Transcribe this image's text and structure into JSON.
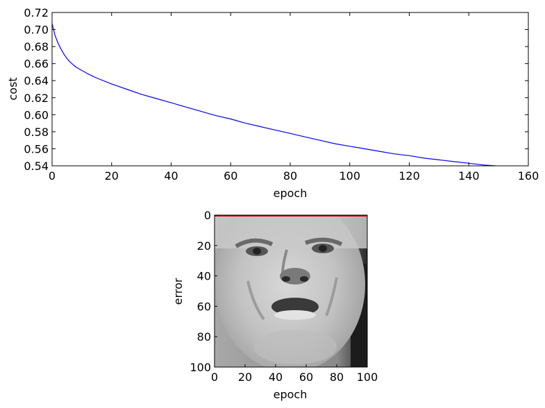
{
  "chart_data": [
    {
      "type": "line",
      "xlabel": "epoch",
      "ylabel": "cost",
      "xlim": [
        0,
        160
      ],
      "ylim": [
        0.54,
        0.72
      ],
      "xticks": [
        0,
        20,
        40,
        60,
        80,
        100,
        120,
        140,
        160
      ],
      "yticks": [
        0.54,
        0.56,
        0.58,
        0.6,
        0.62,
        0.64,
        0.66,
        0.68,
        0.7,
        0.72
      ],
      "ytick_labels": [
        "0.54",
        "0.56",
        "0.58",
        "0.60",
        "0.62",
        "0.64",
        "0.66",
        "0.68",
        "0.70",
        "0.72"
      ],
      "grid": false,
      "series": [
        {
          "color": "#0000ff",
          "x": [
            0,
            1,
            2,
            3,
            4,
            5,
            6,
            8,
            10,
            12,
            15,
            20,
            25,
            30,
            35,
            40,
            45,
            50,
            55,
            60,
            65,
            70,
            75,
            80,
            85,
            90,
            95,
            100,
            105,
            110,
            115,
            120,
            125,
            130,
            135,
            140,
            145,
            149
          ],
          "y": [
            0.707,
            0.693,
            0.684,
            0.677,
            0.671,
            0.666,
            0.662,
            0.656,
            0.652,
            0.648,
            0.643,
            0.636,
            0.63,
            0.624,
            0.619,
            0.614,
            0.609,
            0.604,
            0.599,
            0.595,
            0.59,
            0.586,
            0.582,
            0.578,
            0.574,
            0.57,
            0.566,
            0.563,
            0.56,
            0.557,
            0.554,
            0.552,
            0.549,
            0.547,
            0.545,
            0.543,
            0.541,
            0.54
          ]
        }
      ]
    },
    {
      "type": "image",
      "xlabel": "epoch",
      "ylabel": "error",
      "xlim": [
        0,
        100
      ],
      "ylim": [
        100,
        0
      ],
      "xticks": [
        0,
        20,
        40,
        60,
        80,
        100
      ],
      "yticks": [
        0,
        20,
        40,
        60,
        80,
        100
      ],
      "content": "grayscale-face-photo",
      "overlay_line_color": "#cc0000"
    }
  ]
}
